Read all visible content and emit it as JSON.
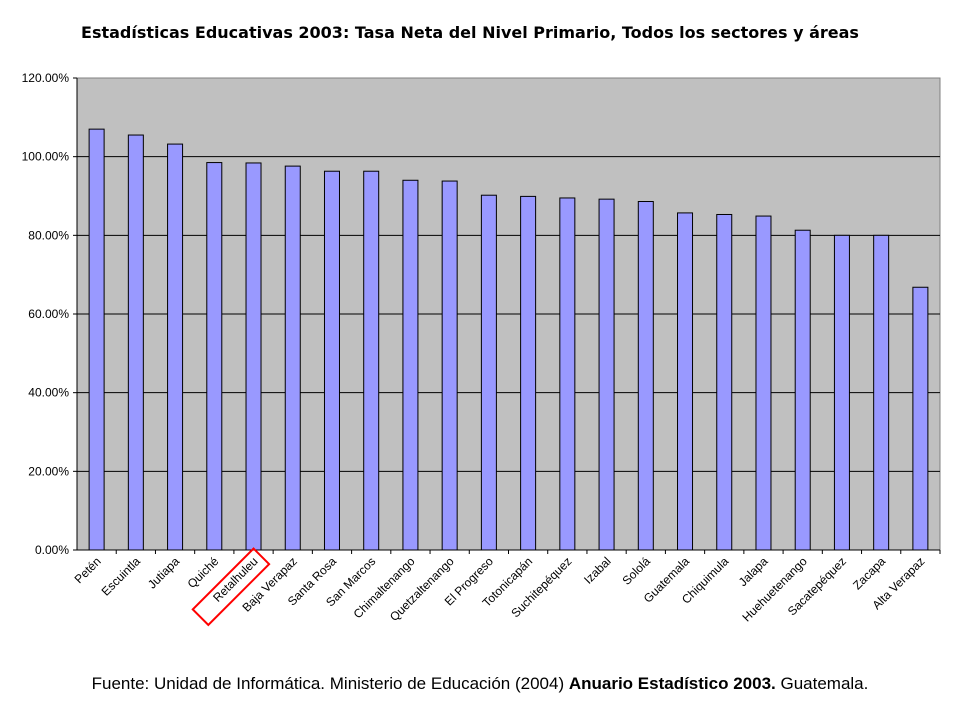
{
  "chart_data": {
    "type": "bar",
    "title": "Estadísticas Educativas 2003: Tasa Neta del Nivel Primario, Todos los sectores y áreas",
    "xlabel": "",
    "ylabel": "",
    "ylim": [
      0,
      120
    ],
    "y_tick_labels": [
      "0.00%",
      "20.00%",
      "40.00%",
      "60.00%",
      "80.00%",
      "100.00%",
      "120.00%"
    ],
    "categories": [
      "Petén",
      "Escuintla",
      "Jutiapa",
      "Quiché",
      "Retalhuleu",
      "Baja Verapaz",
      "Santa Rosa",
      "San Marcos",
      "Chimaltenango",
      "Quetzaltenango",
      "El Progreso",
      "Totonicapán",
      "Suchitepéquez",
      "Izabal",
      "Sololá",
      "Guatemala",
      "Chiquimula",
      "Jalapa",
      "Huehuetenango",
      "Sacatepéquez",
      "Zacapa",
      "Alta Verapaz"
    ],
    "values": [
      107.0,
      105.5,
      103.2,
      98.5,
      98.4,
      97.6,
      96.3,
      96.3,
      94.0,
      93.8,
      90.2,
      89.9,
      89.5,
      89.2,
      88.6,
      85.7,
      85.3,
      84.9,
      81.3,
      80.0,
      80.0,
      66.8
    ],
    "highlighted_category": "Retalhuleu",
    "grid": true,
    "colors": {
      "bar_fill": "#9999ff",
      "bar_stroke": "#000000",
      "plot_background": "#c0c0c0",
      "gridline": "#000000",
      "highlight_box": "#ff0000"
    }
  },
  "footer": {
    "prefix": "Fuente: Unidad de Informática. Ministerio de Educación (2004) ",
    "bold": "Anuario Estadístico 2003.",
    "suffix": " Guatemala."
  }
}
